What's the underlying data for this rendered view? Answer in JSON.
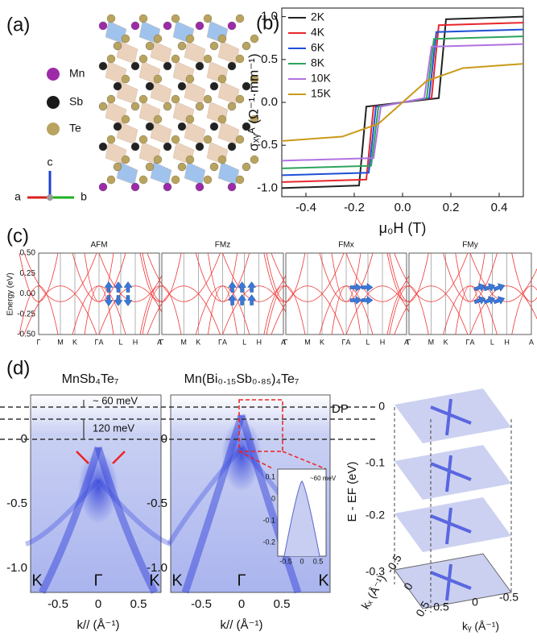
{
  "panel_a": {
    "label": "(a)",
    "legend": [
      "Mn",
      "Sb",
      "Te"
    ],
    "axes": [
      "a",
      "b",
      "c"
    ]
  },
  "chart_data": {
    "type": "line",
    "panel_label": "(b)",
    "xlabel": "μ₀H (T)",
    "ylabel": "σₓᵧᴬ (Ω⁻¹·mm⁻¹)",
    "xlim": [
      -0.5,
      0.5
    ],
    "ylim": [
      -1.1,
      1.1
    ],
    "xticks": [
      -0.4,
      -0.2,
      {
        "value": 0,
        "label": "0.0"
      },
      0.2,
      0.4
    ],
    "yticks": [
      {
        "value": -1,
        "label": "-1.0"
      },
      -0.5,
      {
        "value": 0,
        "label": "0.0"
      },
      0.5,
      {
        "value": 1,
        "label": "1.0"
      }
    ],
    "legend_position": "upper left",
    "series": [
      {
        "name": "2K",
        "color": "#222222",
        "x": [
          -0.5,
          -0.18,
          -0.15,
          0.15,
          0.18,
          0.5
        ],
        "values": [
          -1.0,
          -0.97,
          -0.05,
          0.05,
          0.97,
          1.0
        ]
      },
      {
        "name": "4K",
        "color": "#e8262b",
        "x": [
          -0.5,
          -0.15,
          -0.12,
          0.12,
          0.15,
          0.5
        ],
        "values": [
          -0.93,
          -0.9,
          -0.05,
          0.05,
          0.9,
          0.93
        ]
      },
      {
        "name": "6K",
        "color": "#1f4fd6",
        "x": [
          -0.5,
          -0.14,
          -0.11,
          0.11,
          0.14,
          0.5
        ],
        "values": [
          -0.85,
          -0.82,
          -0.05,
          0.05,
          0.82,
          0.85
        ]
      },
      {
        "name": "8K",
        "color": "#2aa35a",
        "x": [
          -0.5,
          -0.13,
          -0.1,
          0.1,
          0.13,
          0.5
        ],
        "values": [
          -0.77,
          -0.74,
          -0.05,
          0.05,
          0.74,
          0.77
        ]
      },
      {
        "name": "10K",
        "color": "#b072e0",
        "x": [
          -0.5,
          -0.12,
          -0.09,
          0.09,
          0.12,
          0.5
        ],
        "values": [
          -0.68,
          -0.65,
          -0.05,
          0.05,
          0.65,
          0.68
        ]
      },
      {
        "name": "15K",
        "color": "#c99a1a",
        "x": [
          -0.5,
          -0.25,
          -0.1,
          0,
          0.1,
          0.25,
          0.5
        ],
        "values": [
          -0.45,
          -0.4,
          -0.25,
          0,
          0.25,
          0.4,
          0.45
        ]
      }
    ]
  },
  "panel_c": {
    "label": "(c)",
    "ylabel": "Energy (eV)",
    "yticks": [
      "0.50",
      "0.25",
      "0.00",
      "-0.25",
      "-0.50"
    ],
    "titles": [
      "AFM",
      "FMz",
      "FMx",
      "FMy"
    ],
    "kpoints": [
      "Γ",
      "M",
      "K",
      "ΓA",
      "L",
      "H",
      "A"
    ]
  },
  "panel_d": {
    "label": "(d)",
    "titles": [
      "MnSb₄Te₇",
      "Mn(Bi₀.₁₅Sb₀.₈₅)₄Te₇",
      "Mn(Bi₀.₁₅Sb₀.₈₅)₄Te₇"
    ],
    "gap_labels": [
      "~ 60 meV",
      "120 meV"
    ],
    "dp": "DP",
    "yticks": [
      "0",
      "-0.5",
      "-1.0"
    ],
    "xticks": [
      "-0.5",
      "0",
      "0.5"
    ],
    "kpoints": [
      "K",
      "Γ",
      "K"
    ],
    "xlabel": "k// (Å⁻¹)",
    "inset": {
      "label": "~60 meV",
      "yticks": [
        "0.1",
        "0",
        "-0.1",
        "-0.2"
      ],
      "xticks": [
        "-0.5",
        "0",
        "0.5"
      ]
    },
    "stack": {
      "ylabel": "E - EF (eV)",
      "yticks": [
        "0",
        "-0.1",
        "-0.2",
        "-0.3"
      ],
      "kx_label": "kₓ (Å⁻¹)",
      "ky_label": "kᵧ (Å⁻¹)",
      "kx_ticks": [
        "-0.5",
        "0",
        "0.5"
      ],
      "ky_ticks": [
        "0.5",
        "0",
        "-0.5"
      ]
    }
  }
}
